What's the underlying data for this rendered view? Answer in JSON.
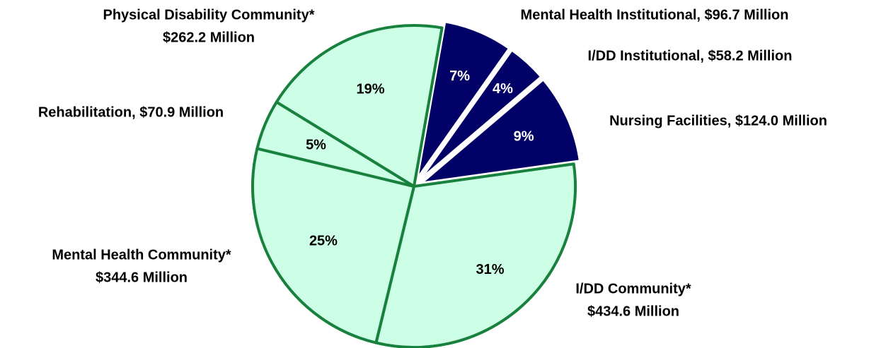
{
  "chart_data": {
    "type": "pie",
    "categories": [
      [
        "Mental Health Institutional, $96.7 Million"
      ],
      [
        "I/DD Institutional, $58.2 Million"
      ],
      [
        "Nursing Facilities, $124.0 Million"
      ],
      [
        "I/DD Community*",
        "$434.6 Million"
      ],
      [
        "Mental Health Community*",
        "$344.6 Million"
      ],
      [
        "Rehabilitation, $70.9 Million"
      ],
      [
        "Physical Disability Community*",
        "$262.2 Million"
      ]
    ],
    "values": [
      7,
      4,
      9,
      31,
      25,
      5,
      19
    ],
    "value_labels": [
      "7%",
      "4%",
      "9%",
      "31%",
      "25%",
      "5%",
      "19%"
    ],
    "colors": [
      "#000066",
      "#000066",
      "#000066",
      "#ccffe6",
      "#ccffe6",
      "#ccffe6",
      "#ccffe6"
    ]
  }
}
